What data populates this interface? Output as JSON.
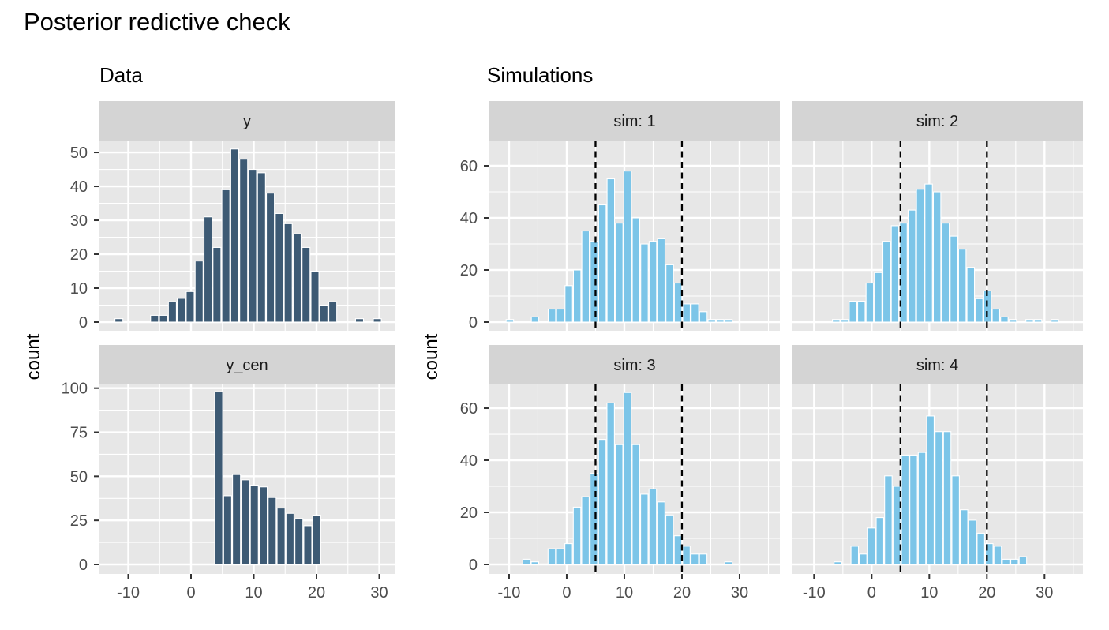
{
  "title": "Posterior redictive check",
  "headers": {
    "data": "Data",
    "simulations": "Simulations"
  },
  "axis_titles": {
    "data_y": "count",
    "sims_y": "count"
  },
  "colors": {
    "dark_bar": "#3d5a74",
    "light_bar": "#7cc5e8",
    "panel_bg": "#e7e7e7",
    "strip_bg": "#d4d4d4",
    "grid": "#ffffff",
    "tick_mark": "#333333",
    "tick_label": "#4d4d4d",
    "strip_label": "#1a1a1a",
    "vline": "#000000"
  },
  "chart_data": [
    {
      "id": "y",
      "type": "bar",
      "facet_label": "y",
      "group": "Data",
      "col": "data",
      "row": 1,
      "fill": "dark",
      "bin_start": -12.2,
      "bin_width": 1.42,
      "counts": [
        1,
        0,
        0,
        0,
        2,
        2,
        6,
        7,
        9,
        18,
        31,
        22,
        39,
        51,
        48,
        45,
        44,
        38,
        32,
        29,
        26,
        22,
        15,
        5,
        6,
        0,
        0,
        1,
        0,
        1
      ],
      "xlim": [
        -14.59,
        32.45
      ],
      "ylim": [
        -2.56,
        53.5
      ],
      "x_major": [
        -10,
        0,
        10,
        20,
        30
      ],
      "x_minor": [
        -5,
        5,
        15,
        25
      ],
      "y_major": [
        0,
        10,
        20,
        30,
        40,
        50
      ],
      "y_minor": [
        5,
        15,
        25,
        35,
        45
      ],
      "vlines": [],
      "show_x_labels": false,
      "show_y_labels": true
    },
    {
      "id": "y_cen",
      "type": "bar",
      "facet_label": "y_cen",
      "group": "Data",
      "col": "data",
      "row": 2,
      "fill": "dark",
      "bin_start": 3.7,
      "bin_width": 1.42,
      "counts": [
        98,
        39,
        51,
        48,
        45,
        44,
        38,
        32,
        29,
        26,
        22,
        28
      ],
      "xlim": [
        -14.59,
        32.45
      ],
      "ylim": [
        -5.37,
        102.1
      ],
      "x_major": [
        -10,
        0,
        10,
        20,
        30
      ],
      "x_minor": [
        -5,
        5,
        15,
        25
      ],
      "y_major": [
        0,
        25,
        50,
        75,
        100
      ],
      "y_minor": [
        12.5,
        37.5,
        62.5,
        87.5
      ],
      "vlines": [],
      "show_x_labels": true,
      "show_y_labels": true
    },
    {
      "id": "sim1",
      "type": "bar",
      "facet_label": "sim: 1",
      "group": "Simulations",
      "col": "simA",
      "row": 1,
      "fill": "light",
      "bin_start": -10.6,
      "bin_width": 1.46,
      "counts": [
        1,
        0,
        0,
        2,
        0,
        5,
        5,
        14,
        20,
        35,
        31,
        45,
        55,
        38,
        58,
        40,
        30,
        31,
        32,
        22,
        15,
        7,
        7,
        4,
        1,
        1,
        1
      ],
      "xlim": [
        -13.42,
        36.99
      ],
      "ylim": [
        -3.33,
        69.7
      ],
      "x_major": [
        -10,
        0,
        10,
        20,
        30
      ],
      "x_minor": [
        -5,
        5,
        15,
        25,
        35
      ],
      "y_major": [
        0,
        20,
        40,
        60
      ],
      "y_minor": [
        10,
        30,
        50
      ],
      "vlines": [
        5,
        20
      ],
      "show_x_labels": false,
      "show_y_labels": true
    },
    {
      "id": "sim2",
      "type": "bar",
      "facet_label": "sim: 2",
      "group": "Simulations",
      "col": "simB",
      "row": 1,
      "fill": "light",
      "bin_start": -6.9,
      "bin_width": 1.46,
      "counts": [
        1,
        1,
        8,
        8,
        15,
        19,
        31,
        37,
        38,
        43,
        51,
        53,
        50,
        38,
        33,
        28,
        21,
        9,
        12,
        5,
        2,
        1,
        0,
        1,
        1,
        0,
        1
      ],
      "xlim": [
        -13.88,
        36.67
      ],
      "ylim": [
        -3.33,
        69.7
      ],
      "x_major": [
        -10,
        0,
        10,
        20,
        30
      ],
      "x_minor": [
        -5,
        5,
        15,
        25,
        35
      ],
      "y_major": [
        0,
        20,
        40,
        60
      ],
      "y_minor": [
        10,
        30,
        50
      ],
      "vlines": [
        5,
        20
      ],
      "show_x_labels": false,
      "show_y_labels": false
    },
    {
      "id": "sim3",
      "type": "bar",
      "facet_label": "sim: 3",
      "group": "Simulations",
      "col": "simA",
      "row": 2,
      "fill": "light",
      "bin_start": -7.7,
      "bin_width": 1.46,
      "counts": [
        2,
        1,
        0,
        6,
        6,
        8,
        22,
        26,
        35,
        48,
        62,
        46,
        66,
        46,
        27,
        29,
        24,
        19,
        11,
        7,
        4,
        4,
        0,
        0,
        1
      ],
      "xlim": [
        -13.42,
        36.99
      ],
      "ylim": [
        -3.64,
        69.1
      ],
      "x_major": [
        -10,
        0,
        10,
        20,
        30
      ],
      "x_minor": [
        -5,
        5,
        15,
        25,
        35
      ],
      "y_major": [
        0,
        20,
        40,
        60
      ],
      "y_minor": [
        10,
        30,
        50
      ],
      "vlines": [
        5,
        20
      ],
      "show_x_labels": true,
      "show_y_labels": true
    },
    {
      "id": "sim4",
      "type": "bar",
      "facet_label": "sim: 4",
      "group": "Simulations",
      "col": "simB",
      "row": 2,
      "fill": "light",
      "bin_start": -6.6,
      "bin_width": 1.46,
      "counts": [
        1,
        0,
        7,
        4,
        14,
        18,
        34,
        30,
        42,
        42,
        43,
        57,
        51,
        51,
        34,
        21,
        17,
        12,
        8,
        7,
        2,
        2,
        3
      ],
      "xlim": [
        -13.88,
        36.67
      ],
      "ylim": [
        -3.64,
        69.1
      ],
      "x_major": [
        -10,
        0,
        10,
        20,
        30
      ],
      "x_minor": [
        -5,
        5,
        15,
        25,
        35
      ],
      "y_major": [
        0,
        20,
        40,
        60
      ],
      "y_minor": [
        10,
        30,
        50
      ],
      "vlines": [
        5,
        20
      ],
      "show_x_labels": true,
      "show_y_labels": false
    }
  ]
}
